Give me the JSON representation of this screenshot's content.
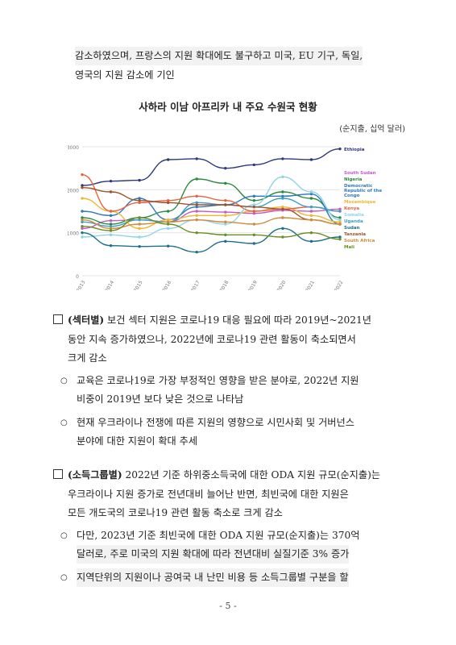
{
  "intro": {
    "line1": "감소하였으며, 프랑스의 지원 확대에도 불구하고 미국, EU 기구, 독일,",
    "line2": "영국의 지원 감소에 기인"
  },
  "figure": {
    "title": "사하라 이남 아프리카 내 주요 수원국 현황",
    "unit": "(순지출, 십억 달러)"
  },
  "chart_data": {
    "type": "line",
    "x": [
      "2013",
      "2014",
      "2015",
      "2016",
      "2017",
      "2018",
      "2019",
      "2020",
      "2021",
      "2022"
    ],
    "ylim": [
      0,
      3000
    ],
    "yticks": [
      "0",
      "1000",
      "2000",
      "3000"
    ],
    "grid": true,
    "legend_position": "right",
    "series": [
      {
        "name": "Ethiopia",
        "color": "#2e3a7a",
        "values": [
          2100,
          2200,
          2220,
          2700,
          2720,
          2500,
          2580,
          2720,
          2700,
          2950
        ]
      },
      {
        "name": "South Sudan",
        "color": "#c45ac6",
        "values": [
          1100,
          1280,
          1300,
          1250,
          1500,
          1480,
          1450,
          1520,
          1500,
          1550
        ]
      },
      {
        "name": "Nigeria",
        "color": "#2a8a3e",
        "values": [
          1350,
          1200,
          1350,
          1500,
          2250,
          2150,
          1750,
          1950,
          1800,
          1350
        ]
      },
      {
        "name": "Democratic Republic of the Congo",
        "color": "#2f79b8",
        "values": [
          1500,
          1400,
          1800,
          1300,
          1600,
          1650,
          1850,
          1850,
          1900,
          1200
        ]
      },
      {
        "name": "Mozambique",
        "color": "#f0b733",
        "values": [
          1800,
          1500,
          1100,
          1300,
          1400,
          1400,
          1500,
          1600,
          1400,
          1250
        ]
      },
      {
        "name": "Kenya",
        "color": "#e8633a",
        "values": [
          2350,
          1500,
          1700,
          1750,
          1850,
          1750,
          1500,
          1550,
          1600,
          1500
        ]
      },
      {
        "name": "Somalia",
        "color": "#8fd3e8",
        "values": [
          900,
          950,
          900,
          1100,
          1300,
          1200,
          1650,
          2300,
          1950,
          1300
        ]
      },
      {
        "name": "Uganda",
        "color": "#3a9ec9",
        "values": [
          1250,
          1150,
          1300,
          1250,
          1700,
          1650,
          1600,
          1800,
          1600,
          1500
        ]
      },
      {
        "name": "Sudan",
        "color": "#1f6f8b",
        "values": [
          1000,
          700,
          680,
          690,
          550,
          800,
          750,
          1100,
          800,
          900
        ]
      },
      {
        "name": "Tanzania",
        "color": "#a0522d",
        "values": [
          2050,
          1950,
          1750,
          1700,
          1650,
          1650,
          1600,
          1550,
          1300,
          1200
        ]
      },
      {
        "name": "South Africa",
        "color": "#d18a3b",
        "values": [
          1300,
          1100,
          1200,
          1250,
          1300,
          1250,
          1200,
          1350,
          1300,
          1200
        ]
      },
      {
        "name": "Mali",
        "color": "#6b8e23",
        "values": [
          1150,
          1050,
          1350,
          1200,
          1000,
          950,
          950,
          900,
          1000,
          850
        ]
      }
    ]
  },
  "sections": {
    "sector": {
      "label": "(섹터별)",
      "line1": " 보건 섹터 지원은 코로나19 대응 필요에 따라 2019년~2021년",
      "line2": "동안 지속 증가하였으나, 2022년에 코로나19 관련 활동이 축소되면서",
      "line3": "크게 감소",
      "sub1_line1": "교육은 코로나19로 가장 부정적인 영향을 받은 분야로, 2022년 지원",
      "sub1_line2": "비중이 2019년 보다 낮은 것으로 나타남",
      "sub2_line1": "현재 우크라이나 전쟁에 따른 지원의 영향으로 시민사회 및 거버넌스",
      "sub2_line2": "분야에 대한 지원이 확대 추세"
    },
    "income": {
      "label": "(소득그룹별)",
      "line1": " 2022년 기준 하위중소득국에 대한 ODA 지원 규모(순지출)는",
      "line2": "우크라이나 지원 증가로 전년대비 늘어난 반면, 최빈국에 대한 지원은",
      "line3": "모든 개도국의 코로나19 관련 활동 축소로 크게 감소",
      "sub1_line1": "다만, 2023년 기준 최빈국에 대한 ODA 지원 규모(순지출)는 370억",
      "sub1_line2": "달러로, 주로 미국의 지원 확대에 따라 전년대비 실질기준 3% 증가",
      "sub2_line1": "지역단위의 지원이나 공여국 내 난민 비용 등 소득그룹별 구분을 할"
    }
  },
  "page_number": "- 5 -"
}
